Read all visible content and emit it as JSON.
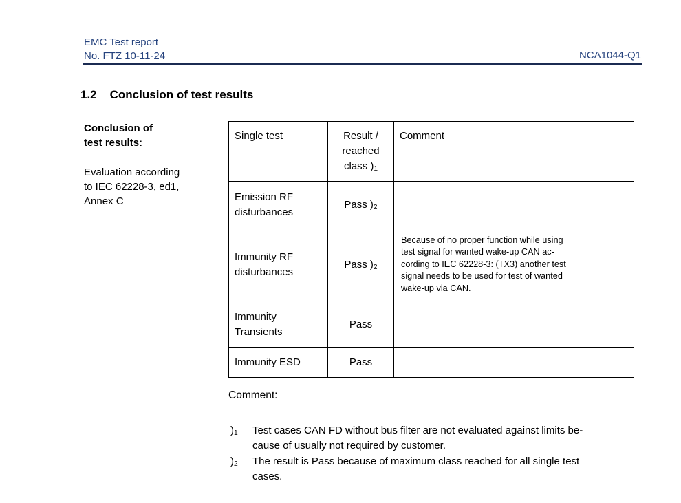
{
  "colors": {
    "header_blue": "#26437e",
    "rule_navy": "#1b2b52"
  },
  "header": {
    "title": "EMC Test report",
    "number": "No. FTZ 10-11-24",
    "doc_code": "NCA1044-Q1"
  },
  "section": {
    "number": "1.2",
    "title": "Conclusion of test results"
  },
  "sidebar": {
    "label_line1": "Conclusion of",
    "label_line2": "test results:",
    "note_line1": "Evaluation according",
    "note_line2": "to IEC 62228-3, ed1,",
    "note_line3": "Annex C"
  },
  "table": {
    "header": {
      "single_test": "Single test",
      "result_line1": "Result /",
      "result_line2": "reached",
      "result_class_prefix": "class )",
      "result_class_sub": "1",
      "comment": "Comment"
    },
    "rows": [
      {
        "test_line1": "Emission RF",
        "test_line2": "disturbances",
        "result": "Pass )",
        "result_sub": "2"
      },
      {
        "test_line1": "Immunity RF",
        "test_line2": "disturbances",
        "result": "Pass )",
        "result_sub": "2",
        "comment_line1": "Because of no proper function while using",
        "comment_line2": "test signal for wanted wake-up CAN ac-",
        "comment_line3": "cording to IEC 62228-3: (TX3) another test",
        "comment_line4": "signal needs to be used for test of wanted",
        "comment_line5": "wake-up via CAN."
      },
      {
        "test_line1": "Immunity",
        "test_line2": "Transients",
        "result": "Pass",
        "result_sub": ""
      },
      {
        "test_line1": "Immunity ESD",
        "result": "Pass",
        "result_sub": ""
      }
    ]
  },
  "comment_label": "Comment:",
  "footnotes": [
    {
      "marker_prefix": ")",
      "marker_sub": "1",
      "line1": "Test cases CAN FD without bus filter are not evaluated against limits be-",
      "line2": "cause of usually not required by customer."
    },
    {
      "marker_prefix": ")",
      "marker_sub": "2",
      "line1": "The result is Pass because of maximum class reached for all single test",
      "line2": "cases."
    }
  ]
}
